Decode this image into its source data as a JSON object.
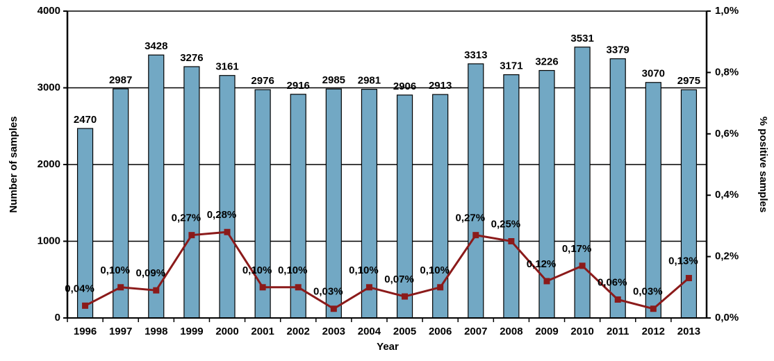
{
  "chart_data": {
    "type": "bar",
    "xlabel": "Year",
    "ylabel": "Number of samples",
    "y2label": "% positive samples",
    "categories": [
      "1996",
      "1997",
      "1998",
      "1999",
      "2000",
      "2001",
      "2002",
      "2003",
      "2004",
      "2005",
      "2006",
      "2007",
      "2008",
      "2009",
      "2010",
      "2011",
      "2012",
      "2013"
    ],
    "series": [
      {
        "type": "bar",
        "color": "#72a8c4",
        "values": [
          2470,
          2987,
          3428,
          3276,
          3161,
          2976,
          2916,
          2985,
          2981,
          2906,
          2913,
          3313,
          3171,
          3226,
          3531,
          3379,
          3070,
          2975
        ]
      },
      {
        "type": "line",
        "axis": "y2",
        "color": "#8b1a1a",
        "values": [
          0.04,
          0.1,
          0.09,
          0.27,
          0.28,
          0.1,
          0.1,
          0.03,
          0.1,
          0.07,
          0.1,
          0.27,
          0.25,
          0.12,
          0.17,
          0.06,
          0.03,
          0.13
        ],
        "value_labels": [
          "0,04%",
          "0,10%",
          "0,09%",
          "0,27%",
          "0,28%",
          "0,10%",
          "0,10%",
          "0,03%",
          "0,10%",
          "0,07%",
          "0,10%",
          "0,27%",
          "0,25%",
          "0,12%",
          "0,17%",
          "0,06%",
          "0,03%",
          "0,13%"
        ]
      }
    ],
    "ylim": [
      0,
      4000
    ],
    "yticks": [
      0,
      1000,
      2000,
      3000,
      4000
    ],
    "y2lim": [
      0,
      1.0
    ],
    "y2ticks": [
      {
        "value": 0,
        "label": "0,0%"
      },
      {
        "value": 0.2,
        "label": "0,2%"
      },
      {
        "value": 0.4,
        "label": "0,4%"
      },
      {
        "value": 0.6,
        "label": "0,6%"
      },
      {
        "value": 0.8,
        "label": "0,8%"
      },
      {
        "value": 1.0,
        "label": "1,0%"
      }
    ],
    "grid": true
  }
}
